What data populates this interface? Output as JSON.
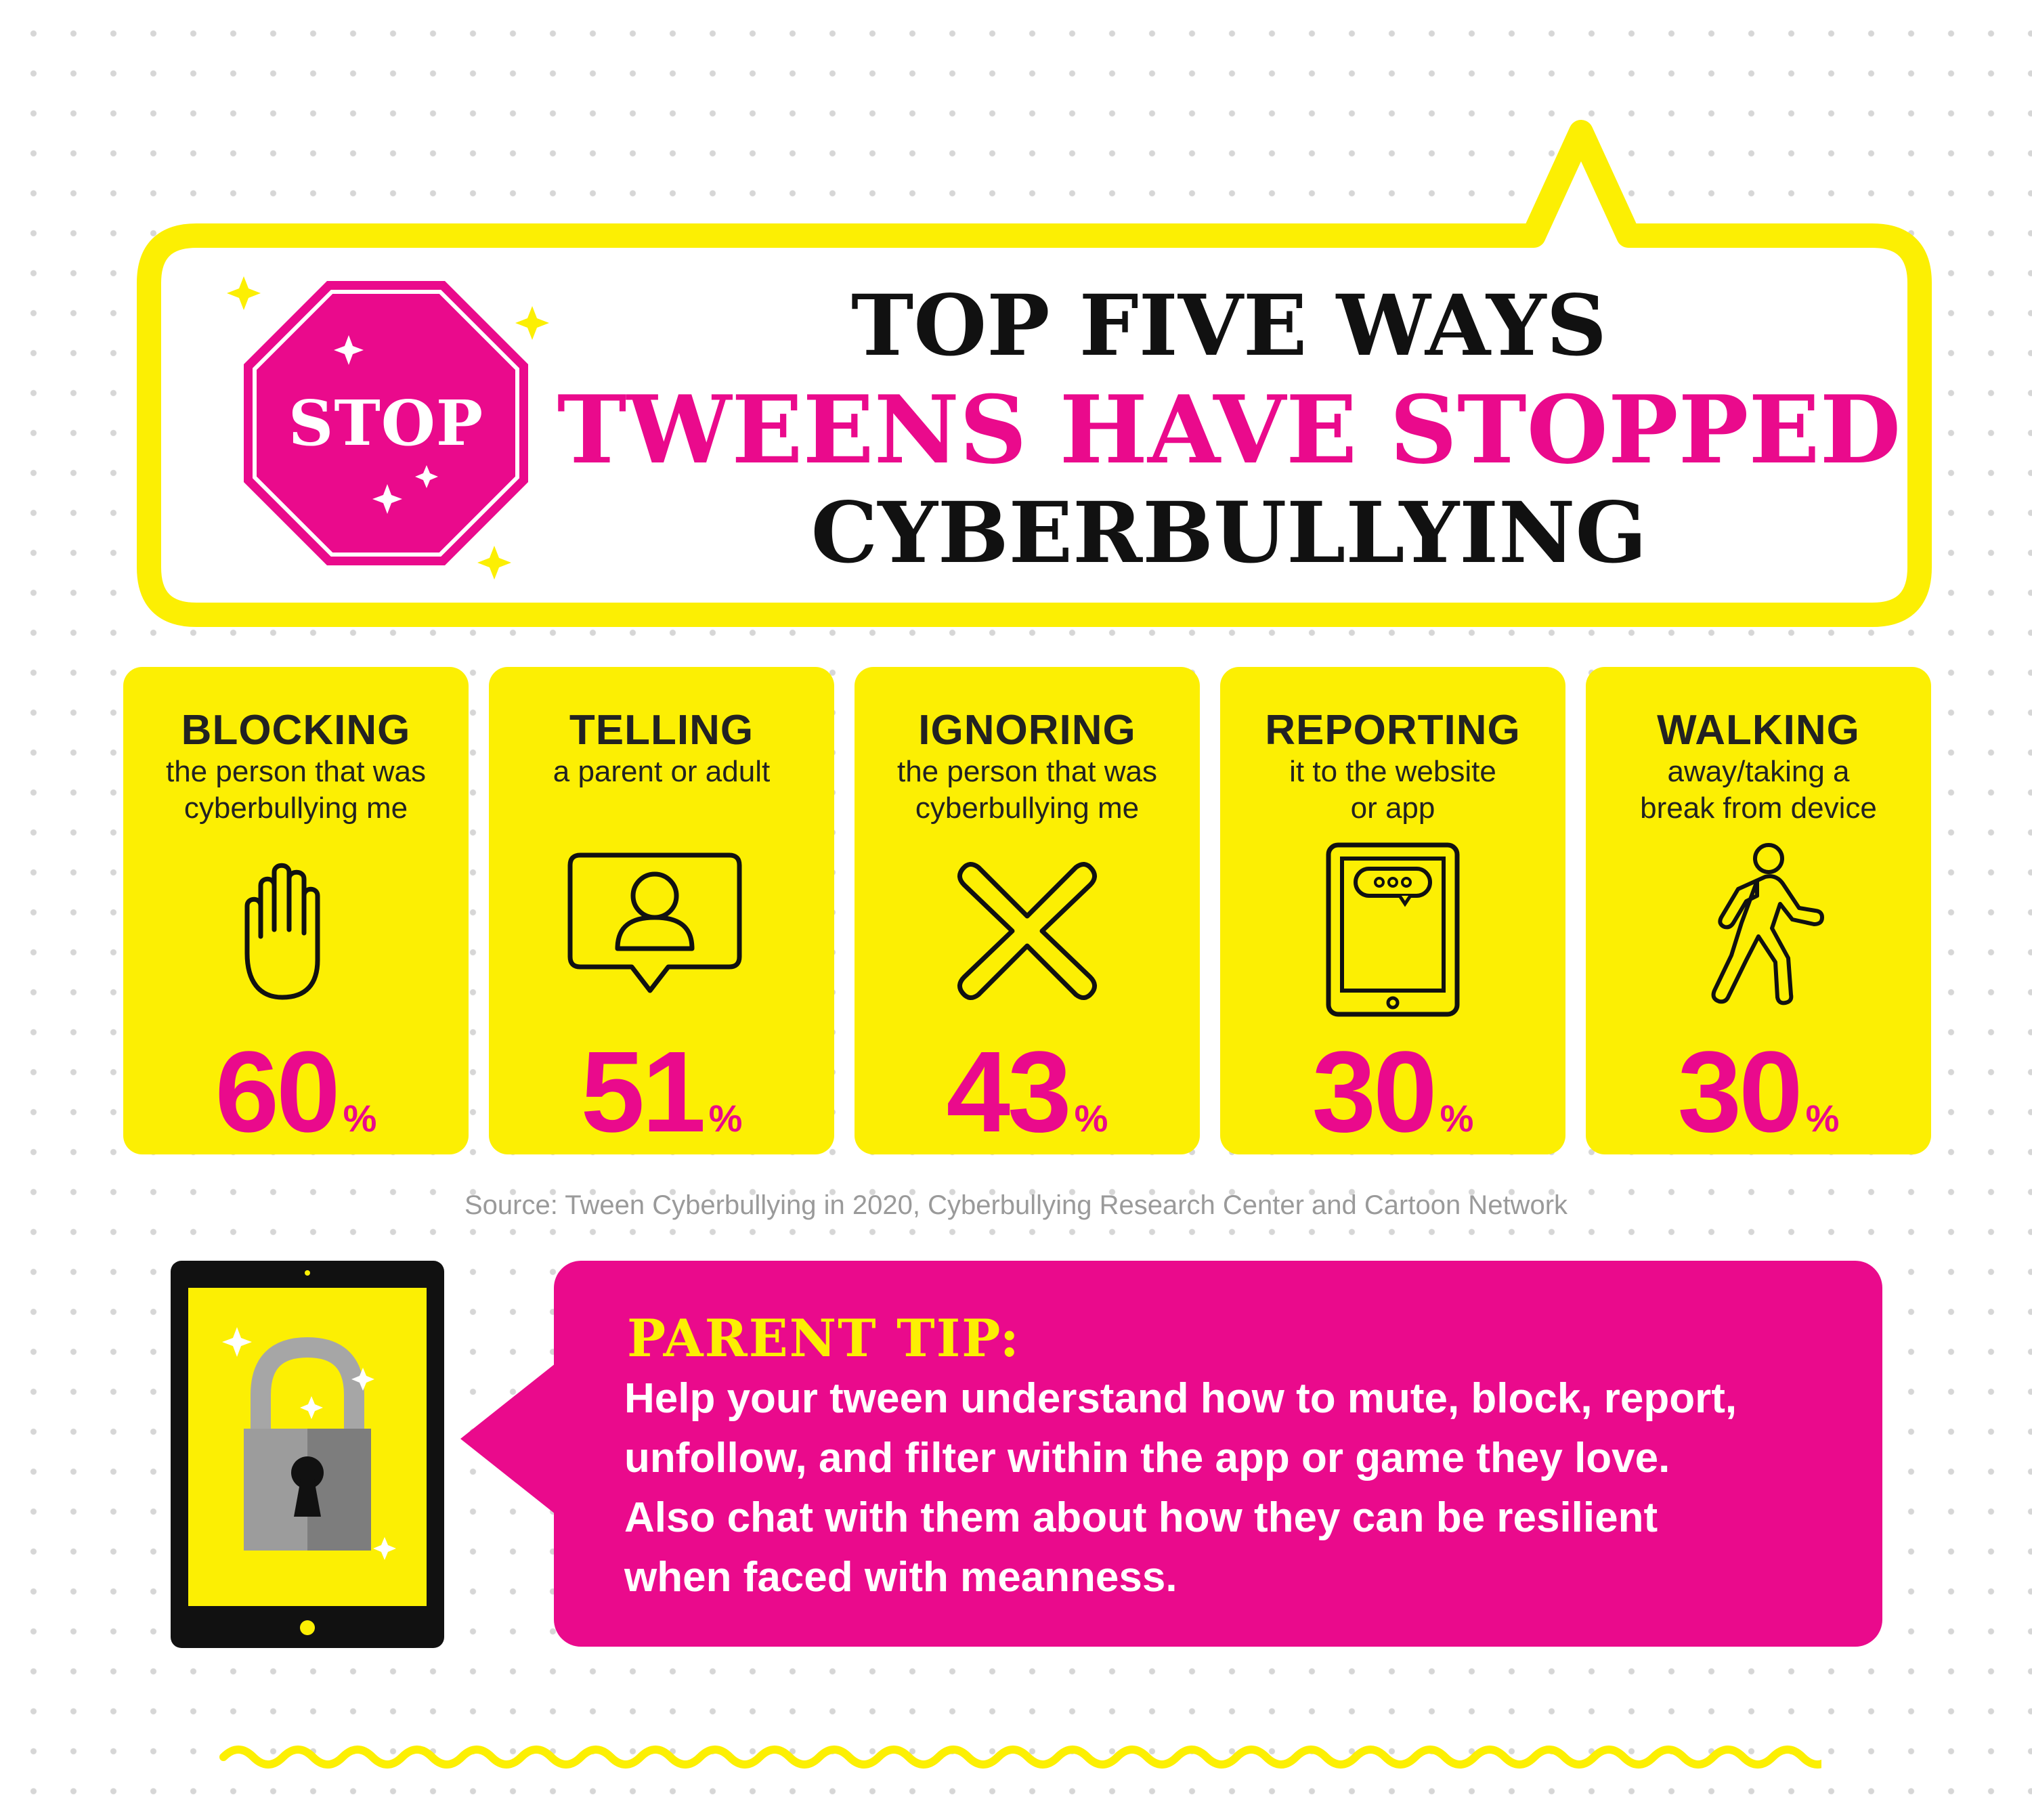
{
  "header": {
    "stop_sign_label": "STOP",
    "title_line1": "TOP FIVE WAYS",
    "title_line2": "TWEENS HAVE STOPPED",
    "title_line3": "CYBERBULLYING"
  },
  "cards": [
    {
      "title": "BLOCKING",
      "desc_line1": "the person that was",
      "desc_line2": "cyberbullying me",
      "value": "60",
      "unit": "%",
      "icon": "raised-hand-icon"
    },
    {
      "title": "TELLING",
      "desc_line1": "a parent or adult",
      "desc_line2": "",
      "value": "51",
      "unit": "%",
      "icon": "person-chat-icon"
    },
    {
      "title": "IGNORING",
      "desc_line1": "the person that was",
      "desc_line2": "cyberbullying me",
      "value": "43",
      "unit": "%",
      "icon": "x-mark-icon"
    },
    {
      "title": "REPORTING",
      "desc_line1": "it to the website",
      "desc_line2": "or app",
      "value": "30",
      "unit": "%",
      "icon": "tablet-chat-icon"
    },
    {
      "title": "WALKING",
      "desc_line1": "away/taking a",
      "desc_line2": "break from device",
      "value": "30",
      "unit": "%",
      "icon": "walking-person-icon"
    }
  ],
  "source": "Source: Tween Cyberbullying in 2020, Cyberbullying Research Center and Cartoon Network",
  "tip": {
    "title": "PARENT TIP:",
    "line1": "Help your tween understand how to mute, block, report,",
    "line2": "unfollow, and filter within the app or game they love.",
    "line3": "Also chat with them about how they can be resilient",
    "line4": "when faced with meanness."
  },
  "colors": {
    "yellow": "#fcef03",
    "magenta": "#ea0a8c",
    "black": "#111111",
    "source_gray": "#9a9a9a"
  }
}
